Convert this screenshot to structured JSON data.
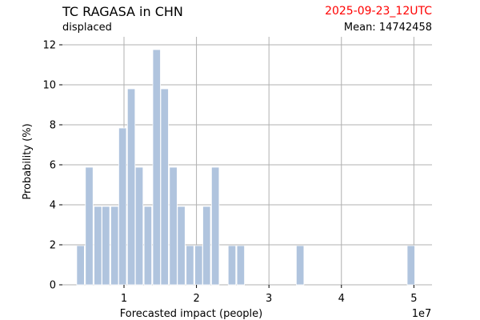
{
  "header": {
    "title": "TC RAGASA in CHN",
    "subtitle": "displaced",
    "date": "2025-09-23_12UTC",
    "date_color": "#ff0000",
    "mean_label": "Mean: 14742458"
  },
  "chart_data": {
    "type": "bar",
    "title": "TC RAGASA in CHN",
    "subtitle": "displaced",
    "xlabel": "Forecasted impact (people)",
    "ylabel": "Probability (%)",
    "x_scale_label": "1e7",
    "x_ticks": [
      1,
      2,
      3,
      4,
      5
    ],
    "y_ticks": [
      0,
      2,
      4,
      6,
      8,
      10,
      12
    ],
    "xlim": [
      0.15,
      5.25
    ],
    "ylim": [
      0,
      12.4
    ],
    "grid": true,
    "bar_color": "#b0c4de",
    "bar_width": 0.105,
    "bars": [
      {
        "x": 0.4,
        "y": 1.96
      },
      {
        "x": 0.52,
        "y": 5.88
      },
      {
        "x": 0.64,
        "y": 3.92
      },
      {
        "x": 0.75,
        "y": 3.92
      },
      {
        "x": 0.87,
        "y": 3.92
      },
      {
        "x": 0.98,
        "y": 7.84
      },
      {
        "x": 1.1,
        "y": 9.8
      },
      {
        "x": 1.21,
        "y": 5.88
      },
      {
        "x": 1.33,
        "y": 3.92
      },
      {
        "x": 1.45,
        "y": 11.76
      },
      {
        "x": 1.56,
        "y": 9.8
      },
      {
        "x": 1.68,
        "y": 5.88
      },
      {
        "x": 1.79,
        "y": 3.92
      },
      {
        "x": 1.91,
        "y": 1.96
      },
      {
        "x": 2.03,
        "y": 1.96
      },
      {
        "x": 2.14,
        "y": 3.92
      },
      {
        "x": 2.26,
        "y": 5.88
      },
      {
        "x": 2.49,
        "y": 1.96
      },
      {
        "x": 2.61,
        "y": 1.96
      },
      {
        "x": 3.43,
        "y": 1.96
      },
      {
        "x": 4.96,
        "y": 1.96
      }
    ]
  }
}
